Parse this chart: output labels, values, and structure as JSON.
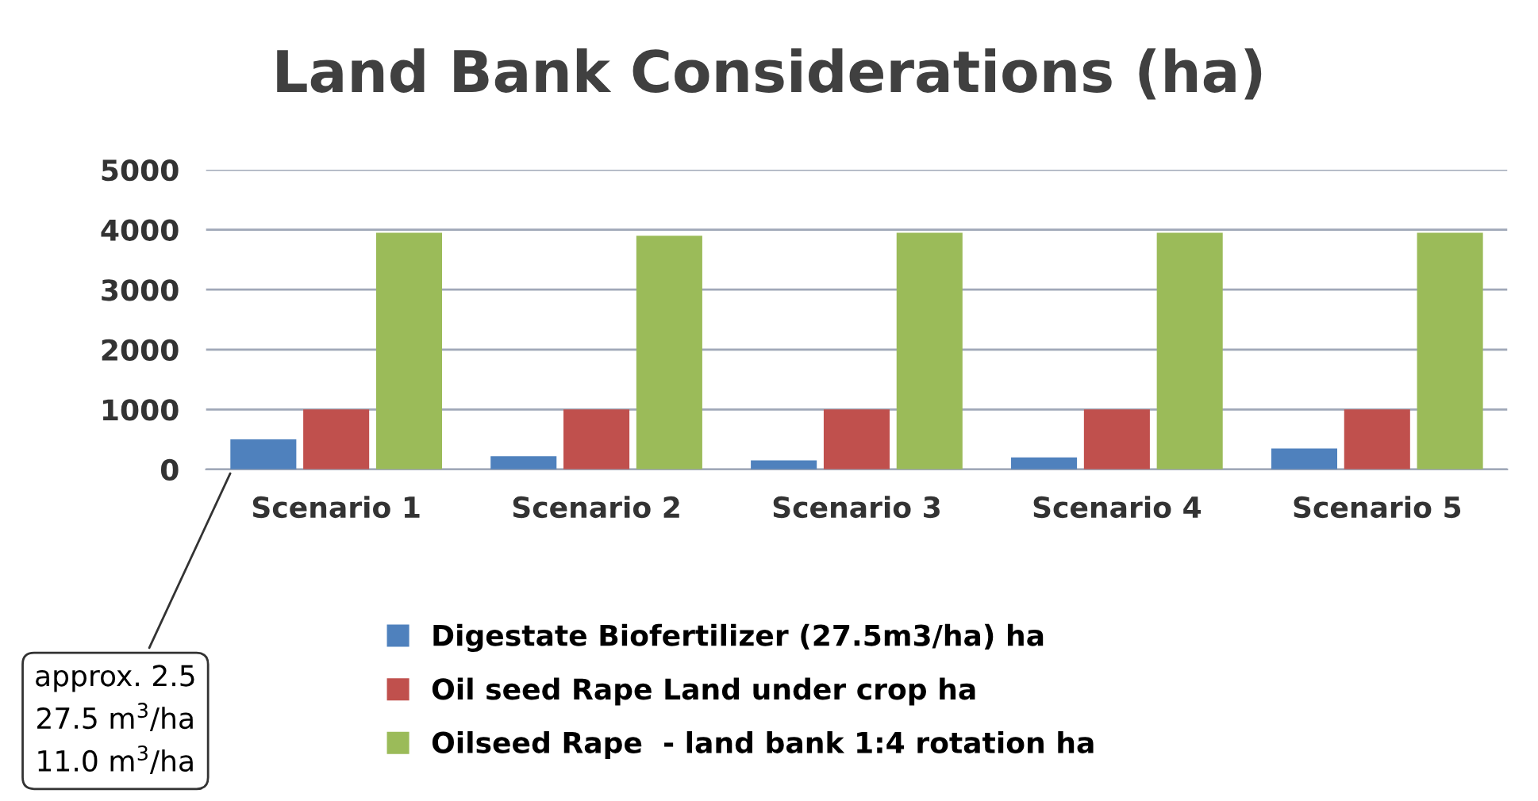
{
  "chart_data": {
    "type": "bar",
    "title": "Land Bank Considerations (ha)",
    "categories": [
      "Scenario 1",
      "Scenario 2",
      "Scenario 3",
      "Scenario 4",
      "Scenario 5"
    ],
    "series": [
      {
        "name": "Digestate Biofertilizer (27.5m3/ha) ha",
        "color": "#4f81bd",
        "values": [
          500,
          220,
          150,
          200,
          350
        ]
      },
      {
        "name": "Oil seed Rape Land under crop ha",
        "color": "#c0504d",
        "values": [
          1000,
          1000,
          1000,
          1000,
          1000
        ]
      },
      {
        "name": "Oilseed Rape  - land bank 1:4 rotation ha",
        "color": "#9bbb59",
        "values": [
          3950,
          3900,
          3950,
          3950,
          3950
        ]
      }
    ],
    "ylim": [
      0,
      5000
    ],
    "yticks": [
      0,
      1000,
      2000,
      3000,
      4000,
      5000
    ],
    "grid": "y",
    "legend": "bottom",
    "annotations": [
      "approx. 2.5\n27.5 m$^{3}$/ha\n11.0 m$^{3}$/ha"
    ]
  }
}
